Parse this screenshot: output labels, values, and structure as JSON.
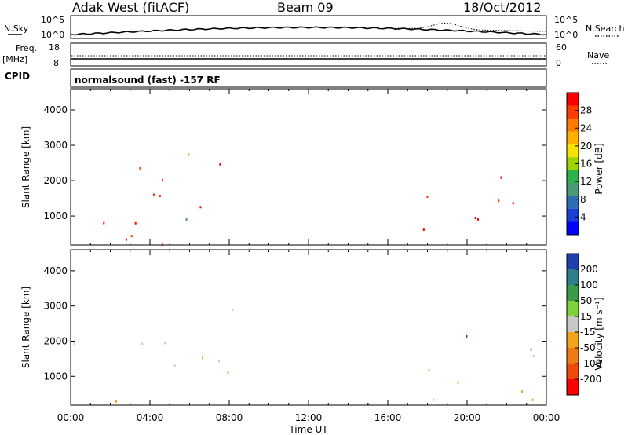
{
  "header": {
    "station": "Adak West (fitACF)",
    "beam": "Beam 09",
    "date": "18/Oct/2012"
  },
  "top_panels": {
    "nsky": {
      "left_label": "N.Sky",
      "left_ticks": [
        "10^5",
        "10^0"
      ],
      "right_label": "N.Search",
      "right_ticks": [
        "10^5",
        "10^0"
      ]
    },
    "freq": {
      "left_label_1": "Freq.",
      "left_label_2": "[MHz]",
      "left_ticks": [
        "18",
        "8"
      ],
      "right_label": "Nave",
      "right_ticks": [
        "60",
        "0"
      ]
    },
    "cpid": {
      "label": "CPID",
      "text": "normalsound (fast) -157 RF"
    }
  },
  "chart_data": [
    {
      "type": "heatmap",
      "name": "power",
      "ylabel": "Slant Range [km]",
      "xlabel": "",
      "x_ticks": [
        "00:00",
        "04:00",
        "08:00",
        "12:00",
        "16:00",
        "20:00",
        "00:00"
      ],
      "xlim": [
        0,
        24
      ],
      "ylim": [
        180,
        4600
      ],
      "y_ticks": [
        1000,
        2000,
        3000,
        4000
      ],
      "colorbar": {
        "label": "Power [dB]",
        "ticks": [
          "28",
          "24",
          "20",
          "16",
          "12",
          "8",
          "4"
        ],
        "colors": [
          "#ff0000",
          "#ff3b00",
          "#ff7a00",
          "#ffb000",
          "#f6e200",
          "#9cd400",
          "#2fb24a",
          "#4c9a78",
          "#2c6fb3",
          "#1a3fd8",
          "#0000ff"
        ]
      }
    },
    {
      "type": "heatmap",
      "name": "velocity",
      "ylabel": "Slant Range [km]",
      "xlabel": "Time UT",
      "x_ticks": [
        "00:00",
        "04:00",
        "08:00",
        "12:00",
        "16:00",
        "20:00",
        "00:00"
      ],
      "xlim": [
        0,
        24
      ],
      "ylim": [
        180,
        4600
      ],
      "y_ticks": [
        1000,
        2000,
        3000,
        4000
      ],
      "colorbar": {
        "label": "Velocity [m s⁻¹]",
        "ticks": [
          "200",
          "100",
          "50",
          "15",
          "-15",
          "-50",
          "-100",
          "-200"
        ],
        "colors": [
          "#1f3fb0",
          "#2e7f8a",
          "#3a9a4a",
          "#7bd23a",
          "#c8c8c4",
          "#f2a41c",
          "#f07a14",
          "#ef4a0a",
          "#ff0000"
        ]
      }
    }
  ]
}
